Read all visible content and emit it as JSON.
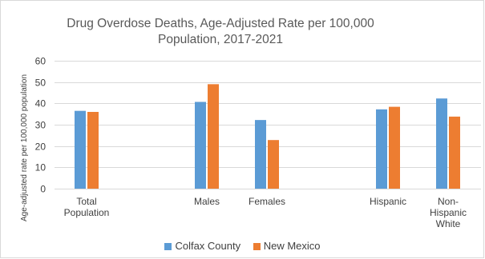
{
  "chart_data": {
    "type": "bar",
    "title_lines": [
      "Drug Overdose Deaths, Age-Adjusted Rate per 100,000",
      "Population, 2017-2021"
    ],
    "ylabel": "Age-adjusted rate per 100,000 population",
    "xlabel": "",
    "ylim": [
      0,
      60
    ],
    "yticks": [
      0,
      10,
      20,
      30,
      40,
      50,
      60
    ],
    "grid": true,
    "legend_position": "bottom",
    "categories": [
      [
        "Total",
        "Population"
      ],
      [
        "Males"
      ],
      [
        "Females"
      ],
      [
        "Hispanic"
      ],
      [
        "Non-",
        "Hispanic",
        "White"
      ]
    ],
    "series": [
      {
        "name": "Colfax County",
        "color": "#5b9bd5",
        "values": [
          36.5,
          40.7,
          32.2,
          37.2,
          42.3
        ]
      },
      {
        "name": "New Mexico",
        "color": "#ed7d31",
        "values": [
          36.0,
          49.0,
          22.8,
          38.4,
          33.8
        ]
      }
    ]
  }
}
